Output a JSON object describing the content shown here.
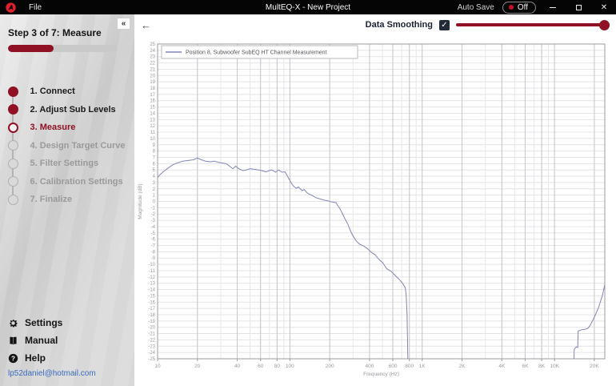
{
  "titlebar": {
    "menu_file": "File",
    "title": "MultEQ-X - New Project",
    "autosave_label": "Auto Save",
    "autosave_state": "Off"
  },
  "icons": {
    "collapse": "«",
    "back": "←",
    "close": "✕",
    "check": "✓",
    "help_glyph": "?"
  },
  "sidebar": {
    "step_header": "Step 3 of 7: Measure",
    "progress_pct": 42,
    "steps": [
      {
        "label": "1. Connect",
        "state": "done"
      },
      {
        "label": "2. Adjust Sub Levels",
        "state": "done"
      },
      {
        "label": "3. Measure",
        "state": "active"
      },
      {
        "label": "4. Design Target Curve",
        "state": "todo"
      },
      {
        "label": "5. Filter Settings",
        "state": "todo"
      },
      {
        "label": "6. Calibration Settings",
        "state": "todo"
      },
      {
        "label": "7. Finalize",
        "state": "todo"
      }
    ],
    "footer": {
      "settings": "Settings",
      "manual": "Manual",
      "help": "Help"
    },
    "account_email": "lp52daniel@hotmail.com"
  },
  "toolbar": {
    "smoothing_label": "Data Smoothing",
    "smoothing_checked": true,
    "slider_value_pct": 100
  },
  "chart_data": {
    "type": "line",
    "legend": [
      "Position 8, Subwoofer SubEQ HT Channel Measurement"
    ],
    "xlabel": "Frequency (Hz)",
    "ylabel": "Magnitude (dB)",
    "x_scale": "log",
    "xlim": [
      10,
      24000
    ],
    "ylim": [
      -25,
      25
    ],
    "y_tick_step": 1,
    "grid": true,
    "legend_position": "top-left",
    "x_ticks": [
      {
        "f": 10,
        "label": "10"
      },
      {
        "f": 20,
        "label": "20"
      },
      {
        "f": 40,
        "label": "40"
      },
      {
        "f": 60,
        "label": "60"
      },
      {
        "f": 80,
        "label": "80"
      },
      {
        "f": 100,
        "label": "100"
      },
      {
        "f": 200,
        "label": "200"
      },
      {
        "f": 400,
        "label": "400"
      },
      {
        "f": 600,
        "label": "600"
      },
      {
        "f": 800,
        "label": "800"
      },
      {
        "f": 1000,
        "label": "1K"
      },
      {
        "f": 2000,
        "label": "2K"
      },
      {
        "f": 4000,
        "label": "4K"
      },
      {
        "f": 6000,
        "label": "6K"
      },
      {
        "f": 8000,
        "label": "8K"
      },
      {
        "f": 10000,
        "label": "10K"
      },
      {
        "f": 20000,
        "label": "20K"
      }
    ],
    "series": [
      {
        "name": "Position 8, Subwoofer SubEQ HT Channel Measurement",
        "color": "#8184b8",
        "segments": [
          [
            [
              10,
              3.8
            ],
            [
              10.5,
              4.3
            ],
            [
              11,
              4.7
            ],
            [
              12,
              5.3
            ],
            [
              13,
              5.8
            ],
            [
              14,
              6.1
            ],
            [
              15.5,
              6.4
            ],
            [
              17,
              6.5
            ],
            [
              18.5,
              6.6
            ],
            [
              20,
              6.9
            ],
            [
              21.5,
              6.6
            ],
            [
              23,
              6.4
            ],
            [
              25,
              6.3
            ],
            [
              27,
              6.4
            ],
            [
              29,
              6.2
            ],
            [
              31,
              6.1
            ],
            [
              33,
              6.0
            ],
            [
              35,
              5.6
            ],
            [
              37,
              5.2
            ],
            [
              39,
              5.6
            ],
            [
              41,
              5.2
            ],
            [
              44,
              4.9
            ],
            [
              47,
              5.0
            ],
            [
              50,
              5.2
            ],
            [
              54,
              5.1
            ],
            [
              58,
              5.0
            ],
            [
              61,
              4.9
            ],
            [
              66,
              4.7
            ],
            [
              70,
              4.9
            ],
            [
              73,
              5.0
            ],
            [
              78,
              4.65
            ],
            [
              82,
              5.0
            ],
            [
              87,
              4.65
            ],
            [
              92,
              4.7
            ],
            [
              96,
              4.0
            ],
            [
              100,
              3.3
            ],
            [
              104,
              2.7
            ],
            [
              108,
              2.3
            ],
            [
              112,
              2.1
            ],
            [
              116,
              2.3
            ],
            [
              120,
              2.0
            ],
            [
              124,
              1.7
            ],
            [
              128,
              1.9
            ],
            [
              133,
              1.5
            ],
            [
              137,
              1.25
            ],
            [
              147,
              0.95
            ],
            [
              157,
              0.6
            ],
            [
              169,
              0.4
            ],
            [
              181,
              0.2
            ],
            [
              194,
              0.1
            ],
            [
              208,
              -0.1
            ],
            [
              224,
              -0.2
            ],
            [
              227,
              -0.5
            ],
            [
              238,
              -1.1
            ],
            [
              249,
              -1.9
            ],
            [
              261,
              -2.8
            ],
            [
              274,
              -3.6
            ],
            [
              287,
              -4.7
            ],
            [
              300,
              -5.5
            ],
            [
              315,
              -6.2
            ],
            [
              325,
              -6.5
            ],
            [
              337,
              -6.8
            ],
            [
              361,
              -7.1
            ],
            [
              386,
              -7.5
            ],
            [
              413,
              -8.1
            ],
            [
              442,
              -8.5
            ],
            [
              470,
              -9.2
            ],
            [
              505,
              -9.8
            ],
            [
              540,
              -10.7
            ],
            [
              580,
              -11.1
            ],
            [
              620,
              -11.7
            ],
            [
              665,
              -12.3
            ],
            [
              710,
              -13.0
            ],
            [
              745,
              -13.7
            ],
            [
              758,
              -15.0
            ],
            [
              768,
              -18.0
            ],
            [
              775,
              -22.0
            ],
            [
              780,
              -26.0
            ]
          ],
          [
            [
              14000,
              -26.0
            ],
            [
              14100,
              -23.5
            ],
            [
              14600,
              -23.1
            ],
            [
              15000,
              -23.2
            ],
            [
              15100,
              -20.6
            ],
            [
              16000,
              -20.4
            ],
            [
              17000,
              -20.3
            ],
            [
              17800,
              -20.2
            ],
            [
              18600,
              -19.7
            ],
            [
              20000,
              -18.4
            ],
            [
              21500,
              -16.9
            ],
            [
              23000,
              -15.0
            ],
            [
              24000,
              -13.2
            ]
          ]
        ]
      }
    ]
  }
}
